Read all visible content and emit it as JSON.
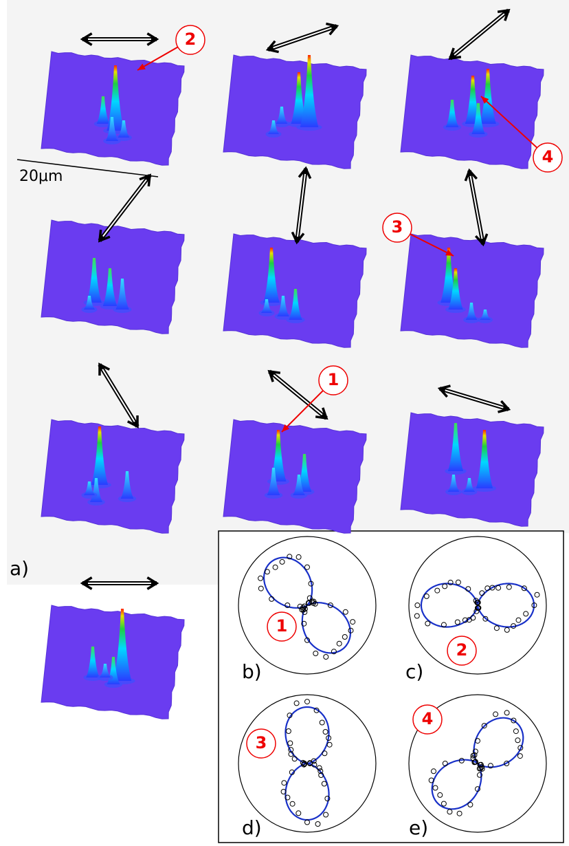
{
  "panel_a": {
    "label": "a)",
    "scale_bar": "20μm",
    "callouts": [
      "2",
      "4",
      "3",
      "1"
    ]
  },
  "polar_panels": [
    {
      "label": "b)",
      "callout": "1"
    },
    {
      "label": "c)",
      "callout": "2"
    },
    {
      "label": "d)",
      "callout": "3"
    },
    {
      "label": "e)",
      "callout": "4"
    }
  ]
}
